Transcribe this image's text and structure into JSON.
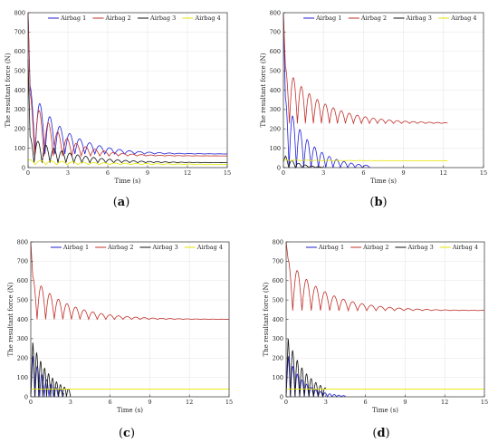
{
  "legend_labels": [
    "Airbag 1",
    "Airbag 2",
    "Airbag 3",
    "Airbag 4"
  ],
  "colors": {
    "airbag1": "#1f1fd6",
    "airbag2": "#c0302a",
    "airbag3": "#111111",
    "airbag4": "#e6e600"
  },
  "chart_data": [
    {
      "type": "line",
      "panel": "(a)",
      "caption": "(a)",
      "caption_letter": "a",
      "xlabel": "Time (s)",
      "ylabel": "The resultant force (N)",
      "xlim": [
        0,
        15
      ],
      "ylim": [
        0,
        800
      ],
      "xticks": [
        0,
        3,
        6,
        9,
        12,
        15
      ],
      "yticks": [
        0,
        100,
        200,
        300,
        400,
        500,
        600,
        700,
        800
      ],
      "legend": "top",
      "grid": true,
      "series": [
        {
          "name": "Airbag 1",
          "color": "#1f1fd6",
          "start": 800,
          "peak": 420,
          "settle": 70,
          "period": 0.75,
          "decay": 2.5,
          "end_time": 15
        },
        {
          "name": "Airbag 2",
          "color": "#c0302a",
          "start": 800,
          "peak": 380,
          "settle": 60,
          "period": 0.7,
          "decay": 2.2,
          "end_time": 15
        },
        {
          "name": "Airbag 3",
          "color": "#111111",
          "start": 560,
          "peak": 160,
          "settle": 25,
          "period": 0.6,
          "decay": 3.0,
          "end_time": 15
        },
        {
          "name": "Airbag 4",
          "color": "#e6e600",
          "start": 40,
          "peak": 40,
          "settle": 15,
          "period": 0.8,
          "decay": 6.0,
          "end_time": 15
        }
      ]
    },
    {
      "type": "line",
      "panel": "(b)",
      "caption": "(b)",
      "caption_letter": "b",
      "xlabel": "Time (s)",
      "ylabel": "The resultant force (N)",
      "xlim": [
        0,
        15
      ],
      "ylim": [
        0,
        800
      ],
      "xticks": [
        0,
        3,
        6,
        9,
        12,
        15
      ],
      "yticks": [
        0,
        100,
        200,
        300,
        400,
        500,
        600,
        700,
        800
      ],
      "legend": "top",
      "grid": true,
      "series": [
        {
          "name": "Airbag 1",
          "color": "#1f1fd6",
          "start": 800,
          "peak": 360,
          "settle": 0,
          "period": 0.55,
          "decay": 1.8,
          "end_time": 6.5
        },
        {
          "name": "Airbag 2",
          "color": "#c0302a",
          "start": 800,
          "peak": 520,
          "settle": 228,
          "period": 0.6,
          "decay": 2.8,
          "end_time": 12.3
        },
        {
          "name": "Airbag 3",
          "color": "#111111",
          "start": 30,
          "peak": 60,
          "settle": 0,
          "period": 0.5,
          "decay": 1.0,
          "end_time": 3
        },
        {
          "name": "Airbag 4",
          "color": "#e6e600",
          "start": 40,
          "peak": 40,
          "settle": 35,
          "period": 0.8,
          "decay": 5.0,
          "end_time": 12.3
        }
      ]
    },
    {
      "type": "line",
      "panel": "(c)",
      "caption": "(c)",
      "caption_letter": "c",
      "xlabel": "Time (s)",
      "ylabel": "The resultant force (N)",
      "xlim": [
        0,
        15
      ],
      "ylim": [
        0,
        800
      ],
      "xticks": [
        0,
        3,
        6,
        9,
        12,
        15
      ],
      "yticks": [
        0,
        100,
        200,
        300,
        400,
        500,
        600,
        700,
        800
      ],
      "legend": "top",
      "grid": true,
      "series": [
        {
          "name": "Airbag 1",
          "color": "#1f1fd6",
          "start": 0,
          "peak": 210,
          "settle": 0,
          "period": 0.35,
          "decay": 1.2,
          "end_time": 2.5
        },
        {
          "name": "Airbag 2",
          "color": "#c0302a",
          "start": 800,
          "peak": 620,
          "settle": 400,
          "period": 0.65,
          "decay": 2.6,
          "end_time": 15
        },
        {
          "name": "Airbag 3",
          "color": "#111111",
          "start": 0,
          "peak": 280,
          "settle": 0,
          "period": 0.3,
          "decay": 1.4,
          "end_time": 3
        },
        {
          "name": "Airbag 4",
          "color": "#e6e600",
          "start": 40,
          "peak": 40,
          "settle": 40,
          "period": 0.8,
          "decay": 5.0,
          "end_time": 15
        }
      ]
    },
    {
      "type": "line",
      "panel": "(d)",
      "caption": "(d)",
      "caption_letter": "d",
      "xlabel": "Time (s)",
      "ylabel": "The resultant force (N)",
      "xlim": [
        0,
        15
      ],
      "ylim": [
        0,
        800
      ],
      "xticks": [
        0,
        3,
        6,
        9,
        12,
        15
      ],
      "yticks": [
        0,
        100,
        200,
        300,
        400,
        500,
        600,
        700,
        800
      ],
      "legend": "top",
      "grid": true,
      "series": [
        {
          "name": "Airbag 1",
          "color": "#1f1fd6",
          "start": 0,
          "peak": 210,
          "settle": 0,
          "period": 0.35,
          "decay": 1.2,
          "end_time": 4.5
        },
        {
          "name": "Airbag 2",
          "color": "#c0302a",
          "start": 800,
          "peak": 710,
          "settle": 445,
          "period": 0.7,
          "decay": 2.8,
          "end_time": 15
        },
        {
          "name": "Airbag 3",
          "color": "#111111",
          "start": 0,
          "peak": 300,
          "settle": 0,
          "period": 0.35,
          "decay": 1.5,
          "end_time": 3
        },
        {
          "name": "Airbag 4",
          "color": "#e6e600",
          "start": 40,
          "peak": 40,
          "settle": 40,
          "period": 0.8,
          "decay": 5.0,
          "end_time": 15
        }
      ]
    }
  ]
}
